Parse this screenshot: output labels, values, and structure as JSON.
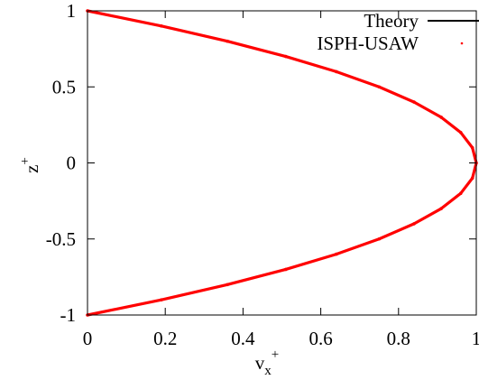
{
  "chart_data": {
    "type": "line",
    "title": "",
    "xlabel": {
      "base": "v",
      "sub": "x",
      "sup": "+"
    },
    "ylabel": {
      "base": "z",
      "sup": "+"
    },
    "xlim": [
      0,
      1
    ],
    "ylim": [
      -1,
      1
    ],
    "x_ticks": [
      0,
      0.2,
      0.4,
      0.6,
      0.8,
      1
    ],
    "x_tick_labels": [
      "0",
      "0.2",
      "0.4",
      "0.6",
      "0.8",
      "1"
    ],
    "y_ticks": [
      -1,
      -0.5,
      0,
      0.5,
      1
    ],
    "y_tick_labels": [
      "-1",
      "-0.5",
      "0",
      "0.5",
      "1"
    ],
    "grid": false,
    "legend_position": "top-right",
    "series": [
      {
        "name": "Theory",
        "style": "line",
        "color": "#000000",
        "formula": "v_x = 1 - z^2",
        "z": [
          -1,
          -0.9,
          -0.8,
          -0.7,
          -0.6,
          -0.5,
          -0.4,
          -0.3,
          -0.2,
          -0.1,
          0,
          0.1,
          0.2,
          0.3,
          0.4,
          0.5,
          0.6,
          0.7,
          0.8,
          0.9,
          1
        ],
        "v_x": [
          0,
          0.19,
          0.36,
          0.51,
          0.64,
          0.75,
          0.84,
          0.91,
          0.96,
          0.99,
          1,
          0.99,
          0.96,
          0.91,
          0.84,
          0.75,
          0.64,
          0.51,
          0.36,
          0.19,
          0
        ]
      },
      {
        "name": "ISPH-USAW",
        "style": "points",
        "color": "#ff0000",
        "z": [
          -1,
          -0.9,
          -0.8,
          -0.7,
          -0.6,
          -0.5,
          -0.4,
          -0.3,
          -0.2,
          -0.1,
          0,
          0.1,
          0.2,
          0.3,
          0.4,
          0.5,
          0.6,
          0.7,
          0.8,
          0.9,
          1
        ],
        "v_x": [
          0,
          0.19,
          0.36,
          0.51,
          0.64,
          0.75,
          0.84,
          0.91,
          0.96,
          0.99,
          1,
          0.99,
          0.96,
          0.91,
          0.84,
          0.75,
          0.64,
          0.51,
          0.36,
          0.19,
          0
        ]
      }
    ]
  }
}
